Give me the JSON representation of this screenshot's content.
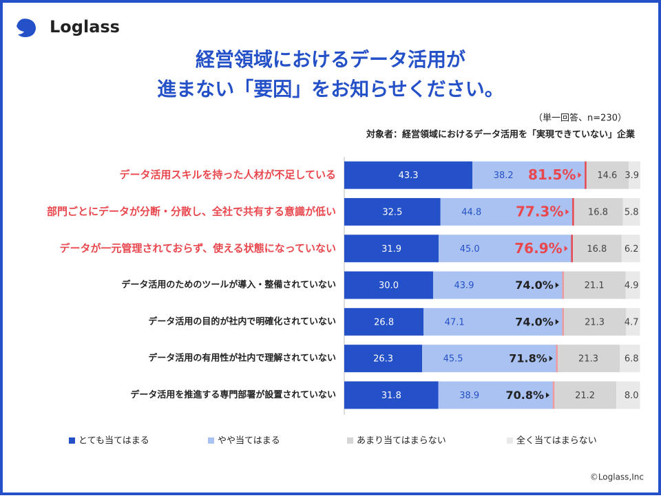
{
  "chart_data": {
    "type": "stacked-bar-horizontal",
    "brand": "Loglass",
    "title": [
      "経営領域におけるデータ活用が",
      "進まない「要因」をお知らせください。"
    ],
    "note": "（単一回答、n=230）",
    "subtitle": "対象者：経営領域におけるデータ活用を「実現できていない」企業",
    "copyright": "©Loglass,Inc",
    "categories": [
      "データ活用スキルを持った人材が不足している",
      "部門ごとにデータが分断・分散し、全社で共有する意識が低い",
      "データが一元管理されておらず、使える状態になっていない",
      "データ活用のためのツールが導入・整備されていない",
      "データ活用の目的が社内で明確化されていない",
      "データ活用の有用性が社内で理解されていない",
      "データ活用を推進する専門部署が設置されていない"
    ],
    "highlighted": [
      true,
      true,
      true,
      false,
      false,
      false,
      false
    ],
    "highlight_color": "#e9474e",
    "xlim": [
      0,
      100
    ],
    "series": [
      {
        "name": "とても当てはまる",
        "color": "#2450c8",
        "label_color": "#ffffff",
        "values": [
          43.3,
          32.5,
          31.9,
          30,
          26.8,
          26.3,
          31.8
        ],
        "value_labels": [
          "43.3",
          "32.5",
          "31.9",
          "30.0",
          "26.8",
          "26.3",
          "31.8"
        ]
      },
      {
        "name": "やや当てはまる",
        "color": "#aac2f1",
        "label_color": "#2450c8",
        "values": [
          38.2,
          44.8,
          45,
          43.9,
          47.1,
          45.5,
          38.9
        ],
        "value_labels": [
          "38.2",
          "44.8",
          "45.0",
          "43.9",
          "47.1",
          "45.5",
          "38.9"
        ]
      },
      {
        "name": "あまり当てはまらない",
        "color": "#d5d5d5",
        "label_color": "#444444",
        "values": [
          14.6,
          16.8,
          16.8,
          21.1,
          21.3,
          21.3,
          21.2
        ],
        "value_labels": [
          "14.6",
          "16.8",
          "16.8",
          "21.1",
          "21.3",
          "21.3",
          "21.2"
        ]
      },
      {
        "name": "全く当てはまらない",
        "color": "#e9e9e9",
        "label_color": "#444444",
        "values": [
          3.9,
          5.8,
          6.2,
          4.9,
          4.7,
          6.8,
          8
        ],
        "value_labels": [
          "3.9",
          "5.8",
          "6.2",
          "4.9",
          "4.7",
          "6.8",
          "8.0"
        ]
      }
    ],
    "totals": {
      "values": [
        81.5,
        77.3,
        76.9,
        74,
        74,
        71.8,
        70.8
      ],
      "value_labels": [
        "81.5%",
        "77.3%",
        "76.9%",
        "74.0%",
        "74.0%",
        "71.8%",
        "70.8%"
      ],
      "color": "#f09aa0"
    }
  }
}
